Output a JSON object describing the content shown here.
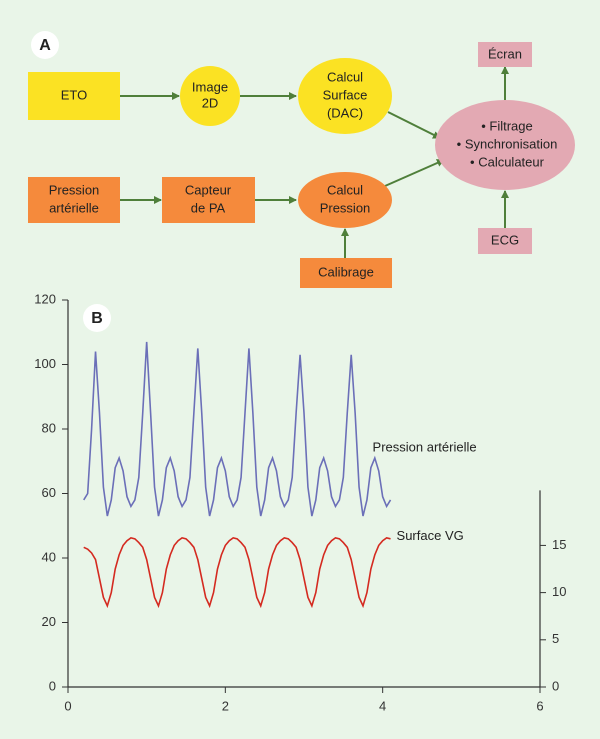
{
  "diagram": {
    "panel_label": "A",
    "nodes": [
      {
        "lines": [
          "ETO"
        ]
      },
      {
        "lines": [
          "Image",
          "2D"
        ]
      },
      {
        "lines": [
          "Calcul",
          "Surface",
          "(DAC)"
        ]
      },
      {
        "lines": [
          "Pression",
          "artérielle"
        ]
      },
      {
        "lines": [
          "Capteur",
          "de PA"
        ]
      },
      {
        "lines": [
          "Calcul",
          "Pression"
        ]
      },
      {
        "lines": [
          "Calibrage"
        ]
      },
      {
        "lines": [
          "• Filtrage",
          "• Synchronisation",
          "• Calculateur"
        ]
      },
      {
        "lines": [
          "Écran"
        ]
      },
      {
        "lines": [
          "ECG"
        ]
      }
    ]
  },
  "chart_data": {
    "type": "line",
    "panel_label": "B",
    "x": [
      0.2,
      0.25,
      0.3,
      0.35,
      0.4,
      0.45,
      0.5,
      0.55,
      0.6,
      0.65,
      0.7,
      0.75,
      0.8,
      0.85,
      0.9,
      0.95,
      1.0,
      1.05,
      1.1,
      1.15,
      1.2,
      1.25,
      1.3,
      1.35,
      1.4,
      1.45,
      1.5,
      1.55,
      1.6,
      1.65,
      1.7,
      1.75,
      1.8,
      1.85,
      1.9,
      1.95,
      2.0,
      2.05,
      2.1,
      2.15,
      2.2,
      2.25,
      2.3,
      2.35,
      2.4,
      2.45,
      2.5,
      2.55,
      2.6,
      2.65,
      2.7,
      2.75,
      2.8,
      2.85,
      2.9,
      2.95,
      3.0,
      3.05,
      3.1,
      3.15,
      3.2,
      3.25,
      3.3,
      3.35,
      3.4,
      3.45,
      3.5,
      3.55,
      3.6,
      3.65,
      3.7,
      3.75,
      3.8,
      3.85,
      3.9,
      3.95,
      4.0,
      4.05,
      4.1
    ],
    "series": [
      {
        "name": "Pression artérielle",
        "color": "#6b6fb8",
        "axis": "y",
        "values": [
          58,
          60,
          80,
          104,
          85,
          62,
          53,
          58,
          68,
          71,
          67,
          59,
          56,
          58,
          65,
          85,
          107,
          85,
          62,
          53,
          58,
          68,
          71,
          67,
          59,
          56,
          58,
          65,
          85,
          105,
          85,
          62,
          53,
          58,
          68,
          71,
          67,
          59,
          56,
          58,
          65,
          85,
          105,
          85,
          62,
          53,
          58,
          68,
          71,
          67,
          59,
          56,
          58,
          65,
          85,
          103,
          85,
          62,
          53,
          58,
          68,
          71,
          67,
          59,
          56,
          58,
          65,
          85,
          103,
          85,
          62,
          53,
          58,
          68,
          71,
          67,
          59,
          56,
          58
        ]
      },
      {
        "name": "Surface VG",
        "color": "#d42a20",
        "axis": "y2",
        "values": [
          14.8,
          14.6,
          14.2,
          13.5,
          11.5,
          9.5,
          8.6,
          10,
          12.5,
          14,
          15,
          15.5,
          15.8,
          15.7,
          15.3,
          14.8,
          13.5,
          11.5,
          9.5,
          8.6,
          10,
          12.5,
          14,
          15,
          15.5,
          15.8,
          15.7,
          15.3,
          14.8,
          13.5,
          11.5,
          9.5,
          8.6,
          10,
          12.5,
          14,
          15,
          15.5,
          15.8,
          15.7,
          15.3,
          14.8,
          13.5,
          11.5,
          9.5,
          8.6,
          10,
          12.5,
          14,
          15,
          15.5,
          15.8,
          15.7,
          15.3,
          14.8,
          13.5,
          11.5,
          9.5,
          8.6,
          10,
          12.5,
          14,
          15,
          15.5,
          15.8,
          15.7,
          15.3,
          14.8,
          13.5,
          11.5,
          9.5,
          8.6,
          10,
          12.5,
          14,
          15,
          15.5,
          15.8,
          15.7
        ]
      }
    ],
    "xlim": [
      0,
      6
    ],
    "xticks": [
      0,
      2,
      4,
      6
    ],
    "ylim": [
      0,
      120
    ],
    "yticks": [
      0,
      20,
      40,
      60,
      80,
      100,
      120
    ],
    "y2lim": [
      0,
      41
    ],
    "y2ticks": [
      0,
      5,
      10,
      15
    ]
  }
}
